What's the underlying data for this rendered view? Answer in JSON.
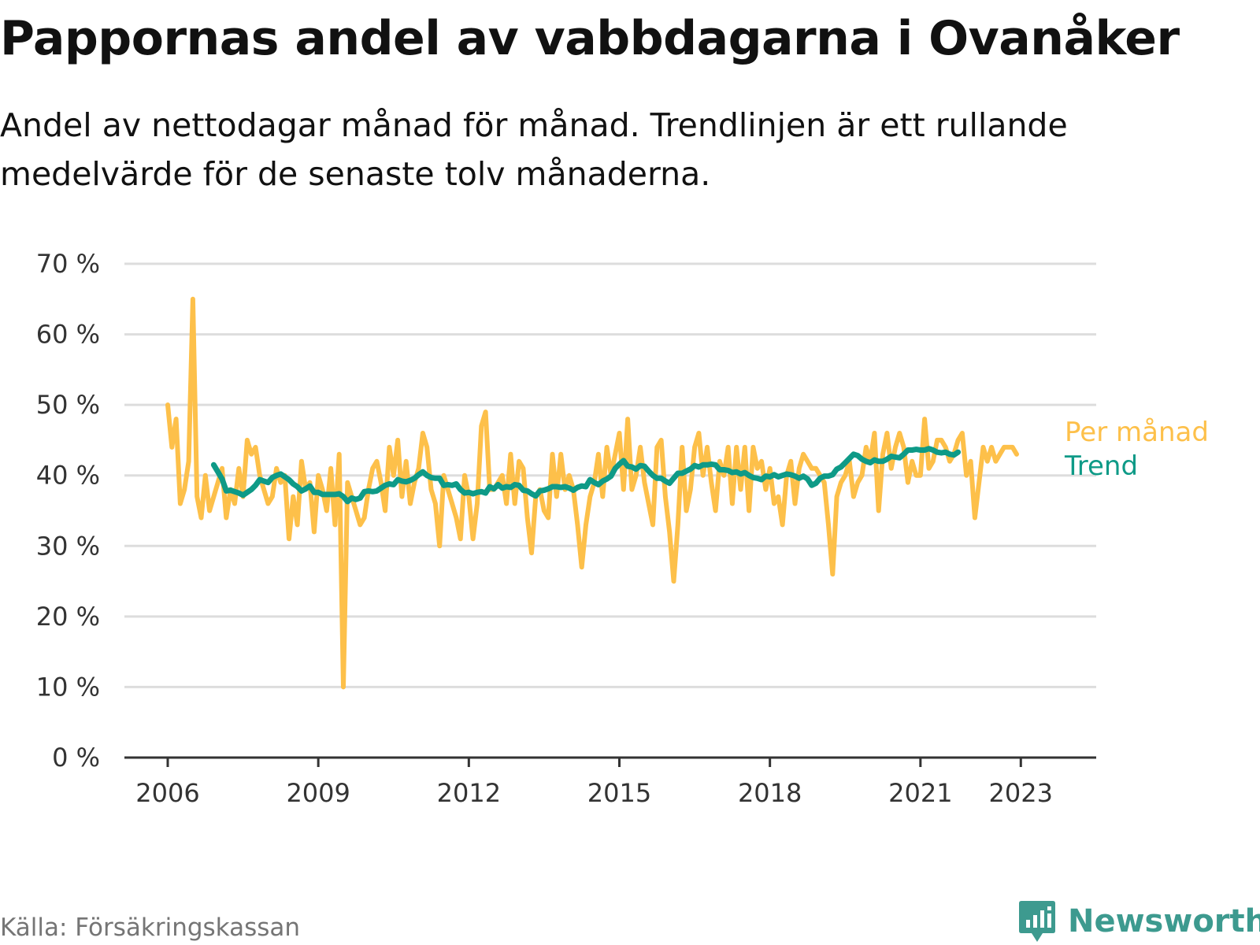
{
  "title": "Pappornas andel av vabbdagarna i Ovanåker",
  "subtitle": "Andel av nettodagar månad för månad. Trendlinjen är ett rullande medelvärde för de senaste tolv månaderna.",
  "source": "Källa: Försäkringskassan",
  "brand": "Newsworthy",
  "colors": {
    "monthly": "#fdc04a",
    "trend": "#0e9a87",
    "grid": "#dddddd",
    "axis": "#333333",
    "brand": "#3d9a8f"
  },
  "chart_data": {
    "type": "line",
    "ylim": [
      0,
      70
    ],
    "y_ticks": [
      {
        "value": 0,
        "label": "0 %"
      },
      {
        "value": 10,
        "label": "10 %"
      },
      {
        "value": 20,
        "label": "20 %"
      },
      {
        "value": 30,
        "label": "30 %"
      },
      {
        "value": 40,
        "label": "40 %"
      },
      {
        "value": 50,
        "label": "50 %"
      },
      {
        "value": 60,
        "label": "60 %"
      },
      {
        "value": 70,
        "label": "70 %"
      }
    ],
    "x_range": [
      "2006-01",
      "2024-01"
    ],
    "x_ticks": [
      {
        "value": "2006-01",
        "label": "2006"
      },
      {
        "value": "2009-01",
        "label": "2009"
      },
      {
        "value": "2012-01",
        "label": "2012"
      },
      {
        "value": "2015-01",
        "label": "2015"
      },
      {
        "value": "2018-01",
        "label": "2018"
      },
      {
        "value": "2021-01",
        "label": "2021"
      },
      {
        "value": "2023-01",
        "label": "2023"
      }
    ],
    "series": [
      {
        "name": "Per månad",
        "start": "2006-01",
        "values": [
          50,
          44,
          48,
          36,
          38,
          42,
          65,
          37,
          34,
          40,
          35,
          37,
          39,
          41,
          34,
          38,
          36,
          41,
          37,
          45,
          43,
          44,
          40,
          38,
          36,
          37,
          41,
          39,
          40,
          31,
          37,
          33,
          42,
          38,
          39,
          32,
          40,
          38,
          35,
          41,
          33,
          43,
          10,
          39,
          37,
          35,
          33,
          34,
          38,
          41,
          42,
          39,
          35,
          44,
          40,
          45,
          37,
          42,
          36,
          39,
          41,
          46,
          44,
          38,
          36,
          30,
          40,
          38,
          36,
          34,
          31,
          40,
          37,
          31,
          36,
          47,
          49,
          38,
          38,
          39,
          40,
          36,
          43,
          36,
          42,
          41,
          34,
          29,
          37,
          38,
          35,
          34,
          43,
          37,
          43,
          38,
          40,
          38,
          33,
          27,
          33,
          37,
          39,
          43,
          37,
          44,
          40,
          43,
          46,
          38,
          48,
          38,
          40,
          44,
          39,
          36,
          33,
          44,
          45,
          37,
          32,
          25,
          33,
          44,
          35,
          38,
          44,
          46,
          40,
          44,
          39,
          35,
          42,
          40,
          44,
          36,
          44,
          38,
          44,
          35,
          44,
          41,
          42,
          38,
          41,
          36,
          37,
          33,
          40,
          42,
          36,
          41,
          43,
          42,
          41,
          41,
          40,
          39,
          33,
          26,
          37,
          39,
          40,
          42,
          37,
          39,
          40,
          44,
          42,
          46,
          35,
          43,
          46,
          41,
          44,
          46,
          44,
          39,
          42,
          40,
          40,
          48,
          41,
          42,
          45,
          45,
          44,
          42,
          43,
          45,
          46,
          40,
          42,
          34,
          39,
          44,
          42,
          44,
          42,
          43,
          44,
          44,
          44,
          43
        ]
      },
      {
        "name": "Trend",
        "start": "2006-12",
        "values": [
          41.5,
          40.5,
          39.5,
          37.8,
          37.9,
          37.7,
          37.5,
          37.2,
          37.6,
          38.0,
          38.6,
          39.4,
          39.2,
          39.0,
          39.7,
          40.0,
          40.2,
          39.8,
          39.4,
          38.8,
          38.4,
          37.8,
          38.1,
          38.5,
          37.6,
          37.6,
          37.3,
          37.3,
          37.3,
          37.3,
          37.4,
          37.0,
          36.3,
          36.8,
          36.6,
          36.8,
          37.7,
          37.8,
          37.7,
          37.8,
          38.2,
          38.6,
          38.8,
          38.7,
          39.4,
          39.2,
          39.1,
          39.3,
          39.6,
          40.1,
          40.5,
          40.0,
          39.7,
          39.6,
          39.6,
          38.6,
          38.7,
          38.6,
          38.8,
          38.0,
          37.5,
          37.6,
          37.4,
          37.6,
          37.7,
          37.5,
          38.4,
          38.1,
          38.7,
          38.2,
          38.4,
          38.3,
          38.7,
          38.6,
          37.9,
          37.8,
          37.4,
          37.1,
          37.8,
          37.9,
          38.1,
          38.4,
          38.4,
          38.3,
          38.4,
          38.2,
          37.9,
          38.3,
          38.5,
          38.4,
          39.4,
          39.0,
          38.7,
          39.2,
          39.5,
          39.9,
          41.0,
          41.6,
          42.1,
          41.3,
          41.2,
          40.9,
          41.4,
          41.3,
          40.6,
          40.0,
          39.6,
          39.6,
          39.2,
          38.9,
          39.6,
          40.3,
          40.3,
          40.6,
          40.9,
          41.4,
          41.2,
          41.5,
          41.5,
          41.6,
          41.5,
          40.8,
          40.8,
          40.7,
          40.4,
          40.5,
          40.2,
          40.4,
          40.0,
          39.7,
          39.6,
          39.4,
          39.9,
          39.8,
          40.1,
          39.8,
          40.0,
          40.2,
          40.1,
          39.9,
          39.6,
          39.9,
          39.5,
          38.6,
          38.9,
          39.6,
          39.9,
          39.9,
          40.1,
          40.9,
          41.2,
          41.8,
          42.4,
          43.0,
          42.8,
          42.3,
          42.0,
          41.8,
          42.2,
          42.0,
          42.0,
          42.3,
          42.7,
          42.6,
          42.5,
          43.0,
          43.6,
          43.6,
          43.7,
          43.6,
          43.6,
          43.8,
          43.6,
          43.3,
          43.2,
          43.3,
          43.0,
          42.9,
          43.3
        ]
      }
    ]
  }
}
